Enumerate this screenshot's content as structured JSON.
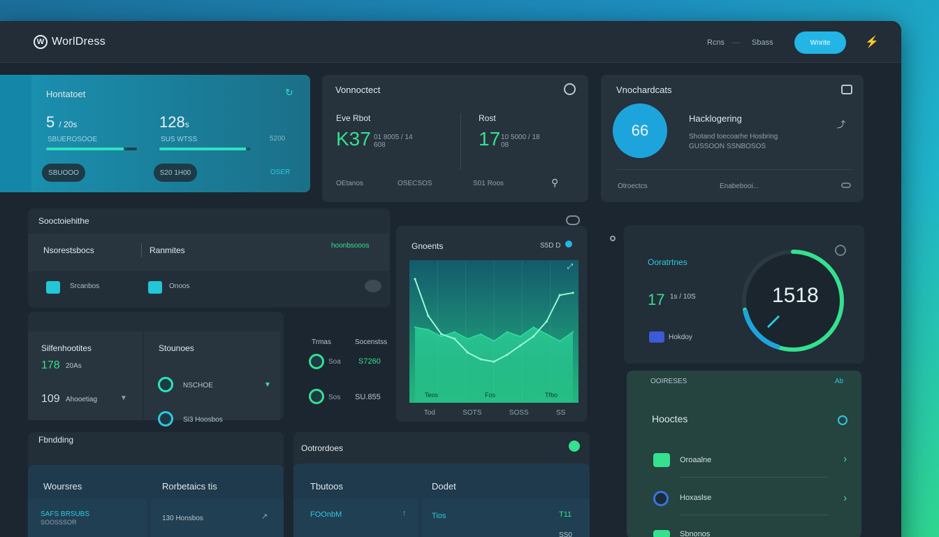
{
  "header": {
    "logo_text": "WorlDress",
    "logo_glyph": "W",
    "links": [
      "Rcns",
      "Sbass"
    ],
    "action_button": "Wnrite",
    "bolt_glyph": "⚡"
  },
  "card_hero": {
    "title": "Hontatoet",
    "refresh_glyph": "↻",
    "metric_a_value": "5",
    "metric_a_unit": "/ 20s",
    "metric_a_sub": "SBUEROSOOE",
    "metric_a_progress": 0.85,
    "metric_b_value": "128",
    "metric_b_unit": "s",
    "metric_b_sub": "SUS WTSS",
    "metric_b_progress": 0.95,
    "side_value": "5200",
    "pill_a": "SBUOOO",
    "pill_b": "S20 1H00",
    "link": "OSER"
  },
  "card_stats": {
    "title": "Vonnoctect",
    "col_a_label": "Eve Rbot",
    "col_a_value": "K37",
    "col_a_meta": "01 8005 / 14 608",
    "col_b_label": "Rost",
    "col_b_value": "17",
    "col_b_meta": "10 5000 / 18 08",
    "footer": [
      "OEtanos",
      "OSECSOS",
      "S01 Roos"
    ]
  },
  "card_profile": {
    "title": "Vnochardcats",
    "avatar_value": "66",
    "heading": "Hacklogering",
    "desc_1": "Shotand toecoarhe Hosbring",
    "desc_2": "GUSSOON SSNBOSOS",
    "footer_a": "Otroectcs",
    "footer_b": "Enabebooi..."
  },
  "panel_services": {
    "title": "Sooctoiehithe",
    "tab_a": "Nsorestsbocs",
    "tab_b": "Ranmites",
    "tab_c": "hoonbsooos",
    "item_a": "Srcanbos",
    "item_b": "Onoos"
  },
  "panel_status": {
    "col_a_title": "Silfenhootites",
    "col_a_row1_value": "178",
    "col_a_row1_unit": "20As",
    "col_a_row2_value": "109",
    "col_a_row2_unit": "Ahooetiag",
    "col_b_title": "Stounoes",
    "col_b_row1": "NSCHOE",
    "col_b_row2": "Si3 Hoosbos"
  },
  "panel_mid_list": {
    "header_a": "Trmas",
    "header_b": "Socenstss",
    "row1_label": "Soa",
    "row1_value": "S7260",
    "row2_label": "Sos",
    "row2_value": "SU.855"
  },
  "panel_chart": {
    "title": "Gnoents",
    "meta": "S5D D",
    "footer": [
      "Tod",
      "SOTS",
      "SOSS",
      "SS"
    ],
    "x_labels": [
      "Teos",
      "Fos",
      "Tfbo"
    ]
  },
  "chart_data": {
    "type": "area",
    "title": "Gnoents",
    "series": [
      {
        "name": "",
        "values": [
          92,
          60,
          44,
          40,
          28,
          22,
          20,
          26,
          34,
          42,
          55,
          78,
          80
        ]
      },
      {
        "name": "",
        "values": [
          50,
          48,
          42,
          46,
          40,
          44,
          38,
          46,
          42,
          50,
          44,
          38,
          46
        ]
      }
    ],
    "ylim": [
      0,
      100
    ],
    "grid": true
  },
  "panel_gauge": {
    "title": "Ooratrtnes",
    "value": "1518",
    "gauge_fraction": 0.72,
    "metric_value": "17",
    "metric_unit": "1s / 10S",
    "legend": "Hokdoy"
  },
  "panel_modules": {
    "header": "OOIRESES",
    "header_right": "Ab",
    "title": "Hooctes",
    "items": [
      "Oroaalne",
      "Hoxaslse",
      "Sbnonos"
    ]
  },
  "panel_footer_left": {
    "title": "Fbndding",
    "tab_a": "Woursres",
    "tab_b": "Rorbetaics tis",
    "cell_a": "SAFS BRSUBS",
    "cell_a_sub": "SOOSSSOR",
    "cell_b": "130 Honsbos"
  },
  "panel_footer_mid": {
    "title": "Ootrordoes",
    "tab_a": "Tbutoos",
    "tab_b": "Dodet",
    "cell_a": "FOOnbM",
    "cell_b": "Tios",
    "cell_b_value": "T11",
    "cell_c": "SS0"
  }
}
